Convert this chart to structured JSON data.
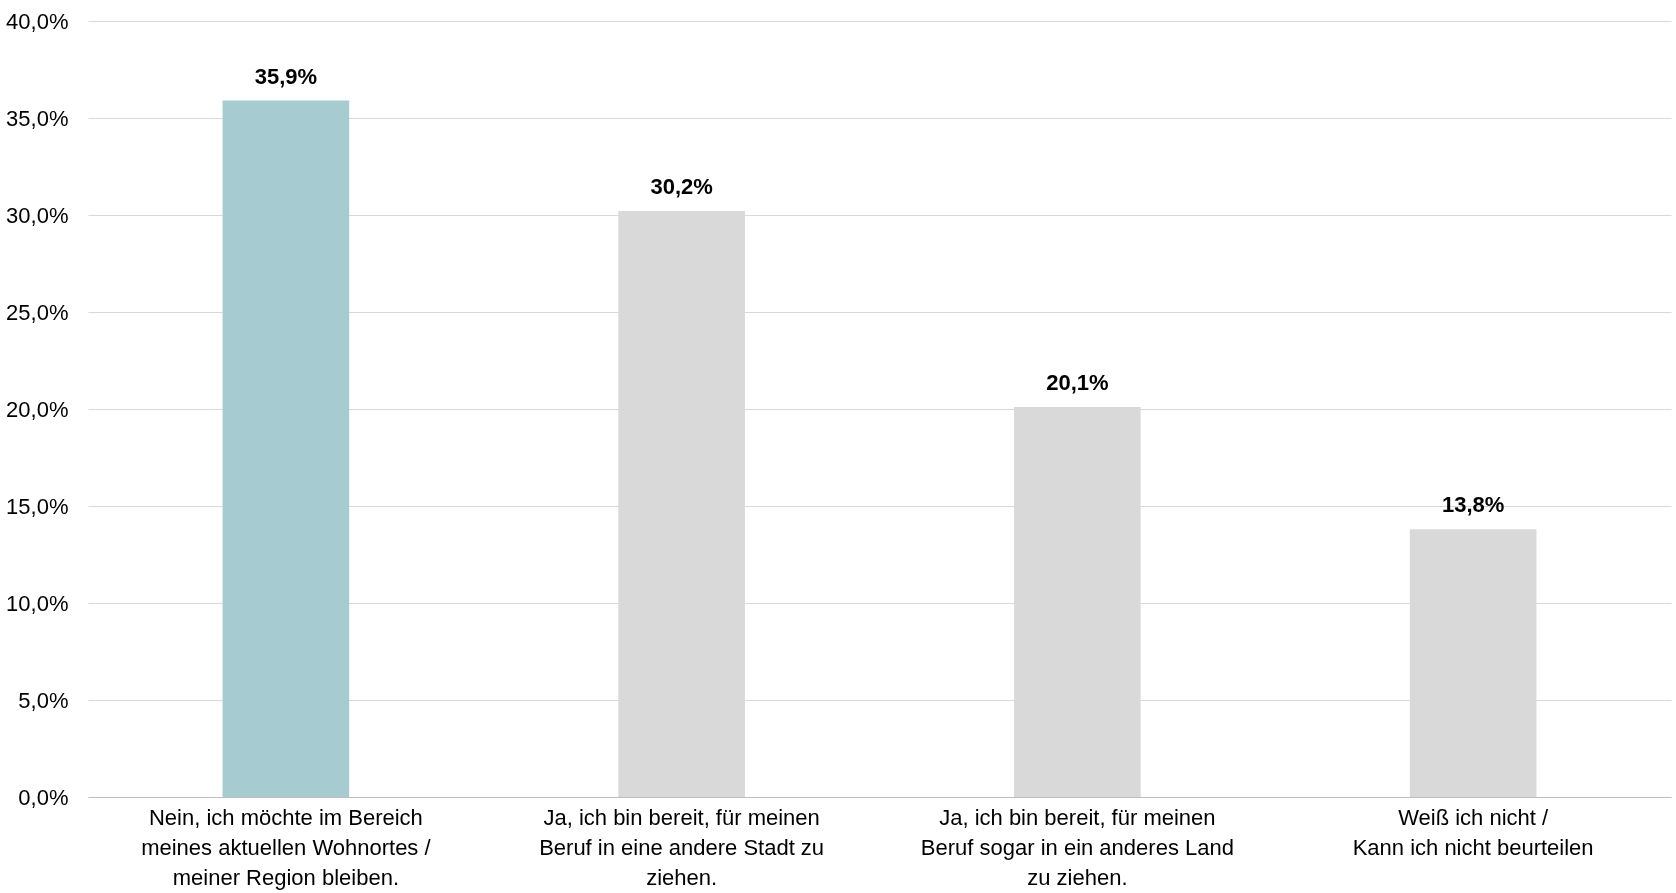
{
  "chart_data": {
    "type": "bar",
    "categories": [
      "Nein, ich möchte im Bereich meines aktuellen Wohnortes / meiner Region bleiben.",
      "Ja, ich bin bereit, für meinen Beruf in eine andere Stadt zu ziehen.",
      "Ja, ich bin bereit, für meinen Beruf sogar in ein anderes Land zu ziehen.",
      "Weiß ich nicht / Kann ich nicht beurteilen"
    ],
    "values": [
      35.9,
      30.2,
      20.1,
      13.8
    ],
    "colors": [
      "#a6cbd0",
      "#d9d9d9",
      "#d9d9d9",
      "#d9d9d9"
    ],
    "value_labels": [
      "35,9%",
      "30,2%",
      "20,1%",
      "13,8%"
    ],
    "ylim": [
      0,
      40
    ],
    "yticks": [
      {
        "value": 0,
        "label": "0,0%"
      },
      {
        "value": 5,
        "label": "5,0%"
      },
      {
        "value": 10,
        "label": "10,0%"
      },
      {
        "value": 15,
        "label": "15,0%"
      },
      {
        "value": 20,
        "label": "20,0%"
      },
      {
        "value": 25,
        "label": "25,0%"
      },
      {
        "value": 30,
        "label": "30,0%"
      },
      {
        "value": 35,
        "label": "35,0%"
      },
      {
        "value": 40,
        "label": "40,0%"
      }
    ],
    "grid": "y"
  }
}
